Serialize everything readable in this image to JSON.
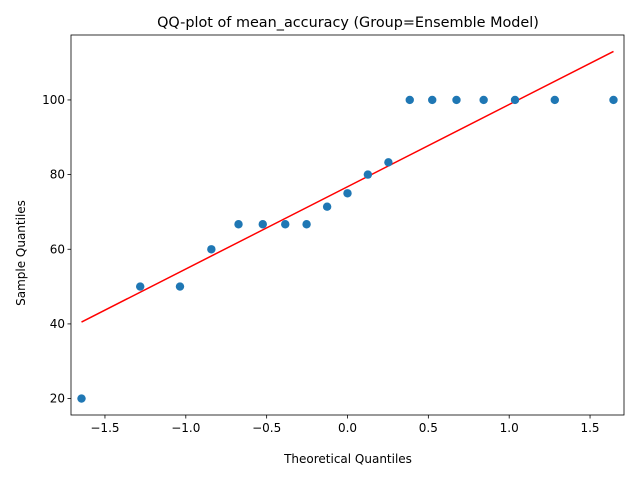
{
  "chart_data": {
    "type": "scatter",
    "title": "QQ-plot of mean_accuracy (Group=Ensemble Model)",
    "xlabel": "Theoretical Quantiles",
    "ylabel": "Sample Quantiles",
    "xlim": [
      -1.71,
      1.71
    ],
    "ylim": [
      15.6,
      117.4
    ],
    "xticks": [
      -1.5,
      -1.0,
      -0.5,
      0.0,
      0.5,
      1.0,
      1.5
    ],
    "xtick_labels": [
      "−1.5",
      "−1.0",
      "−0.5",
      "0.0",
      "0.5",
      "1.0",
      "1.5"
    ],
    "yticks": [
      20,
      40,
      60,
      80,
      100
    ],
    "ytick_labels": [
      "20",
      "40",
      "60",
      "80",
      "100"
    ],
    "grid": false,
    "points": [
      {
        "x": -1.645,
        "y": 20
      },
      {
        "x": -1.282,
        "y": 50
      },
      {
        "x": -1.036,
        "y": 50
      },
      {
        "x": -0.842,
        "y": 60
      },
      {
        "x": -0.674,
        "y": 66.7
      },
      {
        "x": -0.524,
        "y": 66.7
      },
      {
        "x": -0.385,
        "y": 66.7
      },
      {
        "x": -0.253,
        "y": 66.7
      },
      {
        "x": -0.126,
        "y": 71.4
      },
      {
        "x": 0.0,
        "y": 75
      },
      {
        "x": 0.126,
        "y": 80
      },
      {
        "x": 0.253,
        "y": 83.3
      },
      {
        "x": 0.385,
        "y": 100
      },
      {
        "x": 0.524,
        "y": 100
      },
      {
        "x": 0.674,
        "y": 100
      },
      {
        "x": 0.842,
        "y": 100
      },
      {
        "x": 1.036,
        "y": 100
      },
      {
        "x": 1.282,
        "y": 100
      },
      {
        "x": 1.645,
        "y": 100
      }
    ],
    "reference_line": {
      "x": [
        -1.645,
        1.645
      ],
      "y": [
        40.5,
        113.0
      ]
    },
    "point_color": "#1f77b4",
    "line_color": "#ff0000"
  }
}
